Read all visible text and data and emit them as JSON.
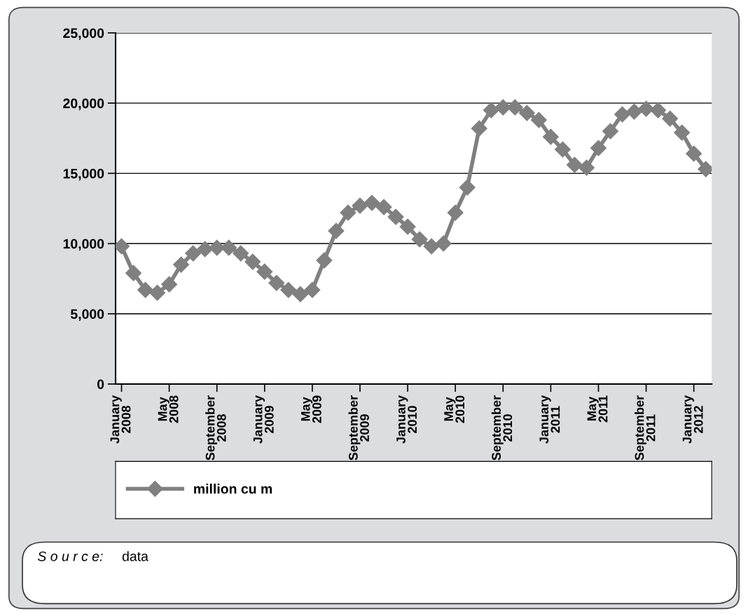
{
  "chart_data": {
    "type": "line",
    "categories": [
      "January 2008",
      null,
      null,
      null,
      "May 2008",
      null,
      null,
      null,
      "September 2008",
      null,
      null,
      null,
      "January 2009",
      null,
      null,
      null,
      "May 2009",
      null,
      null,
      null,
      "September 2009",
      null,
      null,
      null,
      "January 2010",
      null,
      null,
      null,
      "May 2010",
      null,
      null,
      null,
      "September 2010",
      null,
      null,
      null,
      "January 2011",
      null,
      null,
      null,
      "May 2011",
      null,
      null,
      null,
      "September 2011",
      null,
      null,
      null,
      "January 2012",
      null
    ],
    "series": [
      {
        "name": "million cu m",
        "color": "#808080",
        "values": [
          9800,
          7900,
          6700,
          6500,
          7100,
          8500,
          9300,
          9600,
          9700,
          9700,
          9300,
          8700,
          8000,
          7200,
          6700,
          6400,
          6700,
          8800,
          10900,
          12200,
          12700,
          12900,
          12600,
          11900,
          11200,
          10300,
          9800,
          10000,
          12200,
          14000,
          18200,
          19500,
          19700,
          19700,
          19300,
          18800,
          17600,
          16700,
          15600,
          15400,
          16800,
          18000,
          19200,
          19400,
          19600,
          19500,
          18900,
          17900,
          16400,
          15300
        ]
      }
    ],
    "ylim": [
      0,
      25000
    ],
    "yticks": [
      {
        "value": 0,
        "label": "0"
      },
      {
        "value": 5000,
        "label": "5,000"
      },
      {
        "value": 10000,
        "label": "10,000"
      },
      {
        "value": 15000,
        "label": "15,000"
      },
      {
        "value": 20000,
        "label": "20,000"
      },
      {
        "value": 25000,
        "label": "25,000"
      }
    ],
    "grid": "y",
    "legend": "bottom",
    "marker": "diamond",
    "line_style": "solid",
    "annotations": [
      "S o u r c e:",
      "data"
    ]
  }
}
